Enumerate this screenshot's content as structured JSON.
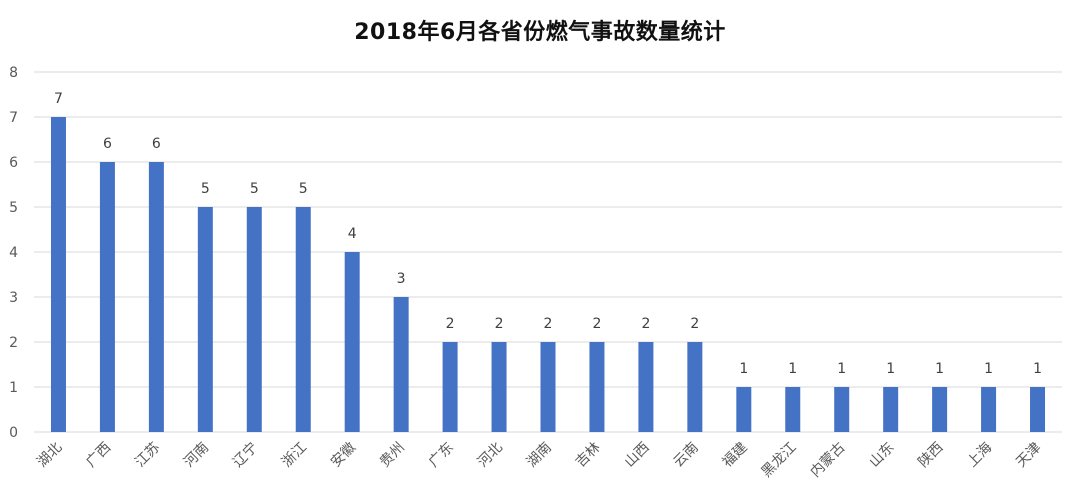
{
  "chart_data": {
    "type": "bar",
    "title": "2018年6月各省份燃气事故数量统计",
    "xlabel": "",
    "ylabel": "",
    "categories": [
      "湖北",
      "广西",
      "江苏",
      "河南",
      "辽宁",
      "浙江",
      "安徽",
      "贵州",
      "广东",
      "河北",
      "湖南",
      "吉林",
      "山西",
      "云南",
      "福建",
      "黑龙江",
      "内蒙古",
      "山东",
      "陕西",
      "上海",
      "天津"
    ],
    "values": [
      7,
      6,
      6,
      5,
      5,
      5,
      4,
      3,
      2,
      2,
      2,
      2,
      2,
      2,
      1,
      1,
      1,
      1,
      1,
      1,
      1
    ],
    "ylim": [
      0,
      8
    ],
    "yticks": [
      0,
      1,
      2,
      3,
      4,
      5,
      6,
      7,
      8
    ],
    "grid": true,
    "legend": "none",
    "data_labels": true,
    "bar_color": "#4472C4",
    "grid_color": "#D9D9D9"
  }
}
